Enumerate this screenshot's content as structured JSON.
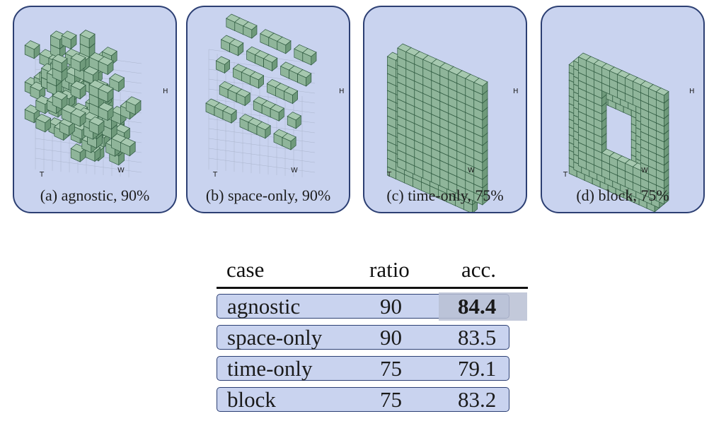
{
  "figure": {
    "panels": [
      {
        "caption": "(a) agnostic, 90%",
        "pattern": "agnostic"
      },
      {
        "caption": "(b) space-only, 90%",
        "pattern": "space-only"
      },
      {
        "caption": "(c) time-only, 75%",
        "pattern": "time-only"
      },
      {
        "caption": "(d) block, 75%",
        "pattern": "block"
      }
    ],
    "axis_labels": {
      "h": "H",
      "t": "T",
      "w": "W"
    },
    "cube_color": "#8fb59a",
    "cube_edge": "#2f5a40",
    "panel_bg": "#c9d3ef",
    "panel_border": "#2c3f73"
  },
  "table": {
    "headers": {
      "case": "case",
      "ratio": "ratio",
      "acc": "acc."
    },
    "rows": [
      {
        "case": "agnostic",
        "ratio": "90",
        "acc": "84.4",
        "best": true
      },
      {
        "case": "space-only",
        "ratio": "90",
        "acc": "83.5"
      },
      {
        "case": "time-only",
        "ratio": "75",
        "acc": "79.1"
      },
      {
        "case": "block",
        "ratio": "75",
        "acc": "83.2"
      }
    ]
  }
}
